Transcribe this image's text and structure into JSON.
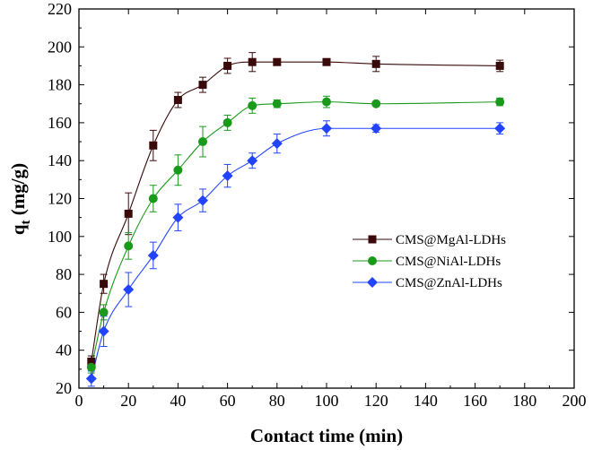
{
  "chart_data": {
    "type": "line",
    "title": "",
    "xlabel": "Contact time (min)",
    "ylabel_main": "q",
    "ylabel_sub": "t",
    "ylabel_unit": " (mg/g)",
    "xlim": [
      0,
      200
    ],
    "ylim": [
      20,
      220
    ],
    "x_ticks": [
      0,
      20,
      40,
      60,
      80,
      100,
      120,
      140,
      160,
      180,
      200
    ],
    "y_ticks": [
      20,
      40,
      60,
      80,
      100,
      120,
      140,
      160,
      180,
      200,
      220
    ],
    "x_tick_labels": [
      "0",
      "20",
      "40",
      "60",
      "80",
      "100",
      "120",
      "140",
      "160",
      "180",
      "200"
    ],
    "y_tick_labels": [
      "20",
      "40",
      "60",
      "80",
      "100",
      "120",
      "140",
      "160",
      "180",
      "200",
      "220"
    ],
    "grid": false,
    "legend_position": "center-right",
    "series": [
      {
        "name": "CMS@MgAl-LDHs",
        "color": "#3a0a0a",
        "marker": "square",
        "x": [
          5,
          10,
          20,
          30,
          40,
          50,
          60,
          70,
          80,
          100,
          120,
          170
        ],
        "y": [
          34,
          75,
          112,
          148,
          172,
          180,
          190,
          192,
          192,
          192,
          191,
          190
        ],
        "err": [
          3,
          5,
          11,
          8,
          4,
          4,
          4,
          5,
          1,
          1,
          4,
          3
        ]
      },
      {
        "name": "CMS@NiAl-LDHs",
        "color": "#1a9a1a",
        "marker": "circle",
        "x": [
          5,
          10,
          20,
          30,
          40,
          50,
          60,
          70,
          80,
          100,
          120,
          170
        ],
        "y": [
          31,
          60,
          95,
          120,
          135,
          150,
          160,
          169,
          170,
          171,
          170,
          171
        ],
        "err": [
          3,
          4,
          7,
          7,
          8,
          8,
          4,
          4,
          2,
          3,
          1,
          2
        ]
      },
      {
        "name": "CMS@ZnAl-LDHs",
        "color": "#2244ff",
        "marker": "diamond",
        "x": [
          5,
          10,
          20,
          30,
          40,
          50,
          60,
          70,
          80,
          100,
          120,
          170
        ],
        "y": [
          25,
          50,
          72,
          90,
          110,
          119,
          132,
          140,
          149,
          157,
          157,
          157
        ],
        "err": [
          4,
          8,
          9,
          7,
          7,
          6,
          6,
          4,
          5,
          4,
          2,
          3
        ]
      }
    ]
  }
}
